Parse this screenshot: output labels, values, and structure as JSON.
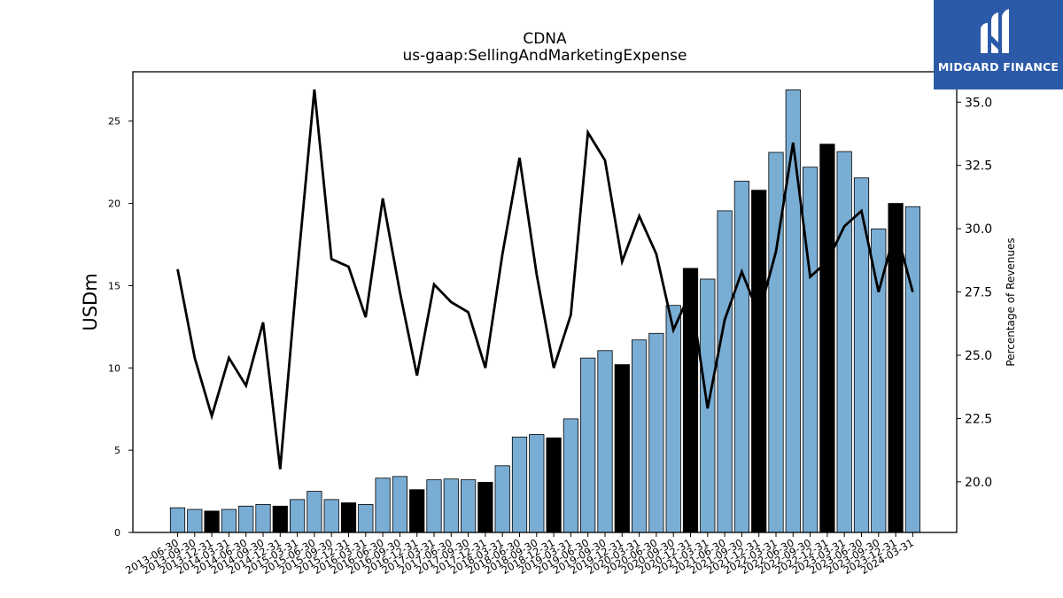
{
  "title": "CDNA",
  "subtitle": "us-gaap:SellingAndMarketingExpense",
  "logo": {
    "text": "MIDGARD FINANCE",
    "icon": "midgard-logo-icon",
    "color": "#2b5aa8"
  },
  "chart_data": {
    "type": "bar",
    "ylabel": "USDm",
    "ylabel_right": "Percentage of Revenues",
    "ylim": [
      0,
      28
    ],
    "ylim_right": [
      18.0,
      36.2
    ],
    "yticks": [
      "0",
      "5",
      "10",
      "15",
      "20",
      "25"
    ],
    "yticks_right": [
      "20.0",
      "22.5",
      "25.0",
      "27.5",
      "30.0",
      "32.5",
      "35.0"
    ],
    "grid": false,
    "colors": {
      "bar": "#7aadd4",
      "bar_q4": "#000000",
      "line": "#000000"
    },
    "categories": [
      "2013-06-30",
      "2013-09-30",
      "2013-12-31",
      "2014-03-31",
      "2014-06-30",
      "2014-09-30",
      "2014-12-31",
      "2015-03-31",
      "2015-06-30",
      "2015-09-30",
      "2015-12-31",
      "2016-03-31",
      "2016-06-30",
      "2016-09-30",
      "2016-12-31",
      "2017-03-31",
      "2017-06-30",
      "2017-09-30",
      "2017-12-31",
      "2018-03-31",
      "2018-06-30",
      "2018-09-30",
      "2018-12-31",
      "2019-03-31",
      "2019-06-30",
      "2019-09-30",
      "2019-12-31",
      "2020-03-31",
      "2020-06-30",
      "2020-09-30",
      "2020-12-31",
      "2021-03-31",
      "2021-06-30",
      "2021-09-30",
      "2021-12-31",
      "2022-03-31",
      "2022-06-30",
      "2022-09-30",
      "2022-12-31",
      "2023-03-31",
      "2023-06-30",
      "2023-09-30",
      "2023-12-31",
      "2024-03-31"
    ],
    "series": [
      {
        "type": "bar",
        "values": [
          1.5,
          1.4,
          1.3,
          1.4,
          1.6,
          1.7,
          1.6,
          2.0,
          2.5,
          2.0,
          1.8,
          1.7,
          3.3,
          3.4,
          2.6,
          3.2,
          3.25,
          3.2,
          3.05,
          4.05,
          5.8,
          5.95,
          5.75,
          6.9,
          10.6,
          11.05,
          10.2,
          11.7,
          12.1,
          13.8,
          16.05,
          15.4,
          19.55,
          21.35,
          20.8,
          23.1,
          26.9,
          22.2,
          23.6,
          23.15,
          21.55,
          18.45,
          20.0,
          19.8
        ],
        "highlight": [
          false,
          false,
          true,
          false,
          false,
          false,
          true,
          false,
          false,
          false,
          true,
          false,
          false,
          false,
          true,
          false,
          false,
          false,
          true,
          false,
          false,
          false,
          true,
          false,
          false,
          false,
          true,
          false,
          false,
          false,
          true,
          false,
          false,
          false,
          true,
          false,
          false,
          false,
          true,
          false,
          false,
          false,
          true,
          false
        ]
      },
      {
        "type": "line",
        "axis": "right",
        "values": [
          28.4,
          24.9,
          22.6,
          24.9,
          23.8,
          26.3,
          20.5,
          28.3,
          35.5,
          28.8,
          28.5,
          26.5,
          31.2,
          27.5,
          24.2,
          27.8,
          27.1,
          26.7,
          24.5,
          29.0,
          32.8,
          28.2,
          24.5,
          26.6,
          33.8,
          32.7,
          28.7,
          30.5,
          29.0,
          26.0,
          27.5,
          22.9,
          26.4,
          28.3,
          26.6,
          29.1,
          33.4,
          28.1,
          28.7,
          30.1,
          30.7,
          27.5,
          30.0,
          27.5
        ]
      }
    ]
  }
}
